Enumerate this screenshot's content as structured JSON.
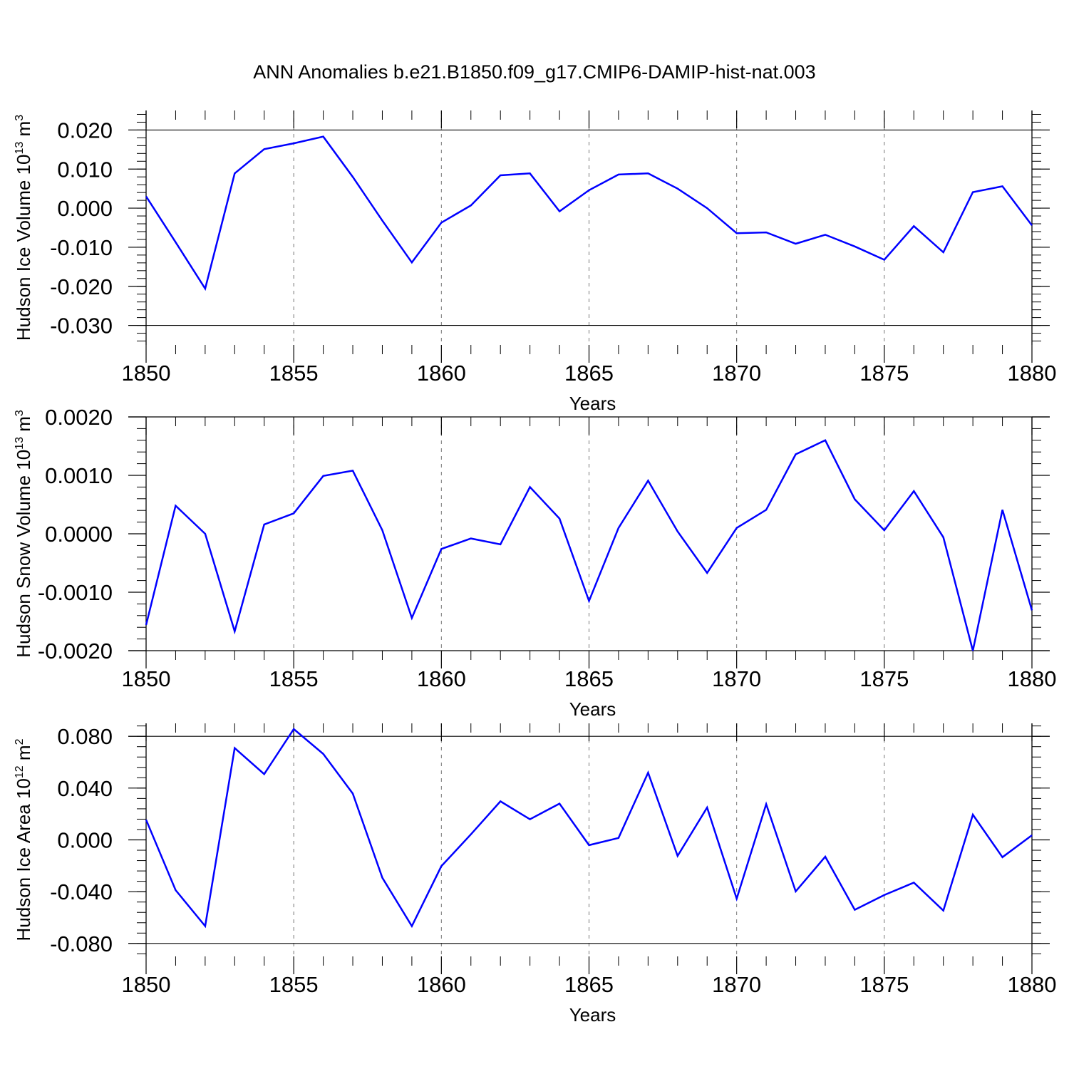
{
  "title": "ANN Anomalies b.e21.B1850.f09_g17.CMIP6-DAMIP-hist-nat.003",
  "line_color": "#0000ff",
  "chart_data": [
    {
      "type": "line",
      "ylabel_main": "Hudson Ice Volume 10",
      "ylabel_exp": "13",
      "ylabel_unit": " m",
      "ylabel_unit_exp": "3",
      "xlabel": "Years",
      "xlim": [
        1850,
        1880
      ],
      "ylim": [
        -0.035,
        0.025
      ],
      "yticks": [
        0.02,
        0.01,
        0.0,
        -0.01,
        -0.02,
        -0.03
      ],
      "ytick_labels": [
        "0.020",
        "0.010",
        "0.000",
        "-0.010",
        "-0.020",
        "-0.030"
      ],
      "xticks": [
        1850,
        1855,
        1860,
        1865,
        1870,
        1875,
        1880
      ],
      "xtick_labels": [
        "1850",
        "1855",
        "1860",
        "1865",
        "1870",
        "1875",
        "1880"
      ],
      "grid": "dashed vertical at major x ticks",
      "series": [
        {
          "x": [
            1850,
            1851,
            1852,
            1853,
            1854,
            1855,
            1856,
            1857,
            1858,
            1859,
            1860,
            1861,
            1862,
            1863,
            1864,
            1865,
            1866,
            1867,
            1868,
            1869,
            1870,
            1871,
            1872,
            1873,
            1874,
            1875,
            1876,
            1877,
            1878,
            1879,
            1880
          ],
          "values": [
            0.003,
            -0.0087,
            -0.0206,
            0.0089,
            0.0151,
            0.0166,
            0.0183,
            0.008,
            -0.0032,
            -0.0139,
            -0.0037,
            0.0007,
            0.0084,
            0.0089,
            -0.0008,
            0.0046,
            0.0086,
            0.0089,
            0.005,
            0.0,
            -0.0064,
            -0.0062,
            -0.0091,
            -0.0068,
            -0.0098,
            -0.0132,
            -0.0046,
            -0.0113,
            0.0041,
            0.0056,
            -0.0044
          ]
        }
      ]
    },
    {
      "type": "line",
      "ylabel_main": "Hudson Snow Volume 10",
      "ylabel_exp": "13",
      "ylabel_unit": " m",
      "ylabel_unit_exp": "3",
      "xlabel": "Years",
      "xlim": [
        1850,
        1880
      ],
      "ylim": [
        -0.002,
        0.002
      ],
      "yticks": [
        0.002,
        0.001,
        0.0,
        -0.001,
        -0.002
      ],
      "ytick_labels": [
        "0.0020",
        "0.0010",
        "0.0000",
        "-0.0010",
        "-0.0020"
      ],
      "xticks": [
        1850,
        1855,
        1860,
        1865,
        1870,
        1875,
        1880
      ],
      "xtick_labels": [
        "1850",
        "1855",
        "1860",
        "1865",
        "1870",
        "1875",
        "1880"
      ],
      "grid": "dashed vertical at major x ticks",
      "series": [
        {
          "x": [
            1850,
            1851,
            1852,
            1853,
            1854,
            1855,
            1856,
            1857,
            1858,
            1859,
            1860,
            1861,
            1862,
            1863,
            1864,
            1865,
            1866,
            1867,
            1868,
            1869,
            1870,
            1871,
            1872,
            1873,
            1874,
            1875,
            1876,
            1877,
            1878,
            1879,
            1880
          ],
          "values": [
            -0.00156,
            0.00048,
            0.0,
            -0.00167,
            0.00016,
            0.00035,
            0.00099,
            0.00108,
            6e-05,
            -0.00144,
            -0.00026,
            -8e-05,
            -0.00018,
            0.0008,
            0.00026,
            -0.00115,
            0.0001,
            0.00091,
            4e-05,
            -0.00067,
            0.0001,
            0.00041,
            0.00136,
            0.0016,
            0.00059,
            6e-05,
            0.00073,
            -6e-05,
            -0.002,
            0.00041,
            -0.00131
          ]
        }
      ]
    },
    {
      "type": "line",
      "ylabel_main": "Hudson Ice Area 10",
      "ylabel_exp": "12",
      "ylabel_unit": " m",
      "ylabel_unit_exp": "2",
      "xlabel": "Years",
      "xlim": [
        1850,
        1880
      ],
      "ylim": [
        -0.09,
        0.09
      ],
      "yticks": [
        0.08,
        0.04,
        0.0,
        -0.04,
        -0.08
      ],
      "ytick_labels": [
        "0.080",
        "0.040",
        "0.000",
        "-0.040",
        "-0.080"
      ],
      "xticks": [
        1850,
        1855,
        1860,
        1865,
        1870,
        1875,
        1880
      ],
      "xtick_labels": [
        "1850",
        "1855",
        "1860",
        "1865",
        "1870",
        "1875",
        "1880"
      ],
      "grid": "dashed vertical at major x ticks",
      "series": [
        {
          "x": [
            1850,
            1851,
            1852,
            1853,
            1854,
            1855,
            1856,
            1857,
            1858,
            1859,
            1860,
            1861,
            1862,
            1863,
            1864,
            1865,
            1866,
            1867,
            1868,
            1869,
            1870,
            1871,
            1872,
            1873,
            1874,
            1875,
            1876,
            1877,
            1878,
            1879,
            1880
          ],
          "values": [
            0.0155,
            -0.0388,
            -0.0666,
            0.0709,
            0.0508,
            0.0856,
            0.0664,
            0.0358,
            -0.0293,
            -0.0666,
            -0.0203,
            0.0043,
            0.0298,
            0.0159,
            0.028,
            -0.0041,
            0.0015,
            0.0519,
            -0.0124,
            0.025,
            -0.0454,
            0.0276,
            -0.0398,
            -0.013,
            -0.054,
            -0.0426,
            -0.033,
            -0.0546,
            0.0195,
            -0.0134,
            0.0036
          ]
        }
      ]
    }
  ]
}
